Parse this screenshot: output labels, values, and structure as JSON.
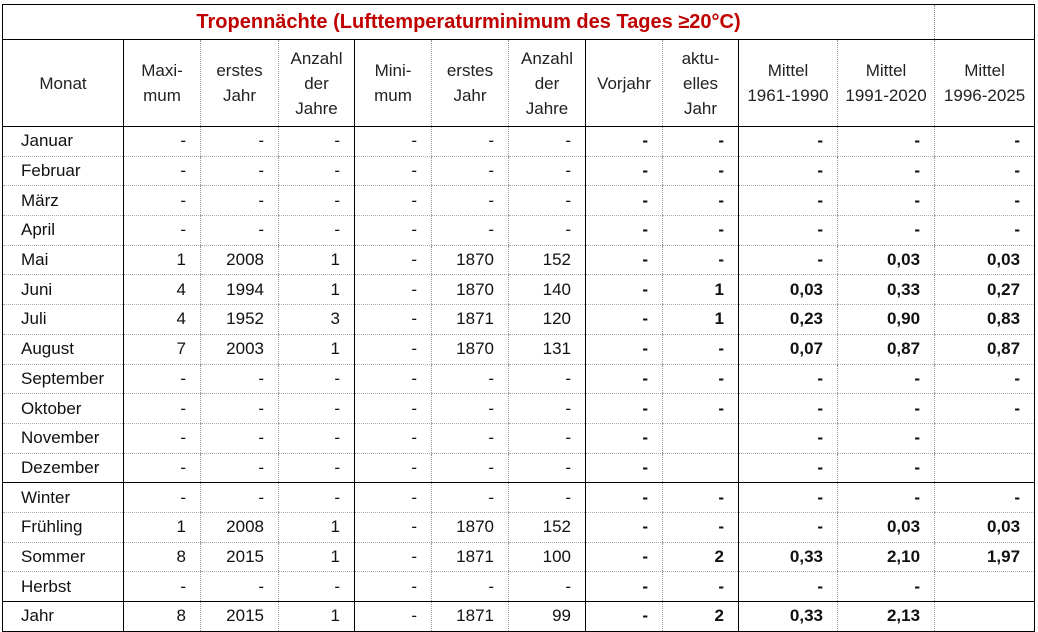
{
  "title": "Tropennächte (Lufttemperaturminimum des Tages  ≥20°C)",
  "headers": {
    "monat": "Monat",
    "maximum": [
      "Maxi-",
      "mum"
    ],
    "erstes_jahr_max": [
      "erstes",
      "Jahr"
    ],
    "anzahl_jahre_max": [
      "Anzahl",
      "der",
      "Jahre"
    ],
    "minimum": [
      "Mini-",
      "mum"
    ],
    "erstes_jahr_min": [
      "erstes",
      "Jahr"
    ],
    "anzahl_jahre_min": [
      "Anzahl",
      "der",
      "Jahre"
    ],
    "vorjahr": "Vorjahr",
    "aktuelles_jahr": [
      "aktu-",
      "elles",
      "Jahr"
    ],
    "mittel_1961": [
      "Mittel",
      "1961-1990"
    ],
    "mittel_1991": [
      "Mittel",
      "1991-2020"
    ],
    "mittel_1996": [
      "Mittel",
      "1996-2025"
    ]
  },
  "rows": [
    {
      "monat": "Januar",
      "max": "-",
      "erstes_max": "-",
      "anzahl_max": "-",
      "min": "-",
      "erstes_min": "-",
      "anzahl_min": "-",
      "vorjahr": "-",
      "aktuell": "-",
      "m1961": "-",
      "m1991": "-",
      "m1996": "-"
    },
    {
      "monat": "Februar",
      "max": "-",
      "erstes_max": "-",
      "anzahl_max": "-",
      "min": "-",
      "erstes_min": "-",
      "anzahl_min": "-",
      "vorjahr": "-",
      "aktuell": "-",
      "m1961": "-",
      "m1991": "-",
      "m1996": "-"
    },
    {
      "monat": "März",
      "max": "-",
      "erstes_max": "-",
      "anzahl_max": "-",
      "min": "-",
      "erstes_min": "-",
      "anzahl_min": "-",
      "vorjahr": "-",
      "aktuell": "-",
      "m1961": "-",
      "m1991": "-",
      "m1996": "-"
    },
    {
      "monat": "April",
      "max": "-",
      "erstes_max": "-",
      "anzahl_max": "-",
      "min": "-",
      "erstes_min": "-",
      "anzahl_min": "-",
      "vorjahr": "-",
      "aktuell": "-",
      "m1961": "-",
      "m1991": "-",
      "m1996": "-"
    },
    {
      "monat": "Mai",
      "max": "1",
      "erstes_max": "2008",
      "anzahl_max": "1",
      "min": "-",
      "erstes_min": "1870",
      "anzahl_min": "152",
      "vorjahr": "-",
      "aktuell": "-",
      "m1961": "-",
      "m1991": "0,03",
      "m1996": "0,03"
    },
    {
      "monat": "Juni",
      "max": "4",
      "erstes_max": "1994",
      "anzahl_max": "1",
      "min": "-",
      "erstes_min": "1870",
      "anzahl_min": "140",
      "vorjahr": "-",
      "aktuell": "1",
      "m1961": "0,03",
      "m1991": "0,33",
      "m1996": "0,27"
    },
    {
      "monat": "Juli",
      "max": "4",
      "erstes_max": "1952",
      "anzahl_max": "3",
      "min": "-",
      "erstes_min": "1871",
      "anzahl_min": "120",
      "vorjahr": "-",
      "aktuell": "1",
      "m1961": "0,23",
      "m1991": "0,90",
      "m1996": "0,83"
    },
    {
      "monat": "August",
      "max": "7",
      "erstes_max": "2003",
      "anzahl_max": "1",
      "min": "-",
      "erstes_min": "1870",
      "anzahl_min": "131",
      "vorjahr": "-",
      "aktuell": "-",
      "m1961": "0,07",
      "m1991": "0,87",
      "m1996": "0,87"
    },
    {
      "monat": "September",
      "max": "-",
      "erstes_max": "-",
      "anzahl_max": "-",
      "min": "-",
      "erstes_min": "-",
      "anzahl_min": "-",
      "vorjahr": "-",
      "aktuell": "-",
      "m1961": "-",
      "m1991": "-",
      "m1996": "-"
    },
    {
      "monat": "Oktober",
      "max": "-",
      "erstes_max": "-",
      "anzahl_max": "-",
      "min": "-",
      "erstes_min": "-",
      "anzahl_min": "-",
      "vorjahr": "-",
      "aktuell": "-",
      "m1961": "-",
      "m1991": "-",
      "m1996": "-"
    },
    {
      "monat": "November",
      "max": "-",
      "erstes_max": "-",
      "anzahl_max": "-",
      "min": "-",
      "erstes_min": "-",
      "anzahl_min": "-",
      "vorjahr": "-",
      "aktuell": "",
      "m1961": "-",
      "m1991": "-",
      "m1996": ""
    },
    {
      "monat": "Dezember",
      "max": "-",
      "erstes_max": "-",
      "anzahl_max": "-",
      "min": "-",
      "erstes_min": "-",
      "anzahl_min": "-",
      "vorjahr": "-",
      "aktuell": "",
      "m1961": "-",
      "m1991": "-",
      "m1996": ""
    },
    {
      "monat": "Winter",
      "max": "-",
      "erstes_max": "-",
      "anzahl_max": "-",
      "min": "-",
      "erstes_min": "-",
      "anzahl_min": "-",
      "vorjahr": "-",
      "aktuell": "-",
      "m1961": "-",
      "m1991": "-",
      "m1996": "-"
    },
    {
      "monat": "Frühling",
      "max": "1",
      "erstes_max": "2008",
      "anzahl_max": "1",
      "min": "-",
      "erstes_min": "1870",
      "anzahl_min": "152",
      "vorjahr": "-",
      "aktuell": "-",
      "m1961": "-",
      "m1991": "0,03",
      "m1996": "0,03"
    },
    {
      "monat": "Sommer",
      "max": "8",
      "erstes_max": "2015",
      "anzahl_max": "1",
      "min": "-",
      "erstes_min": "1871",
      "anzahl_min": "100",
      "vorjahr": "-",
      "aktuell": "2",
      "m1961": "0,33",
      "m1991": "2,10",
      "m1996": "1,97"
    },
    {
      "monat": "Herbst",
      "max": "-",
      "erstes_max": "-",
      "anzahl_max": "-",
      "min": "-",
      "erstes_min": "-",
      "anzahl_min": "-",
      "vorjahr": "-",
      "aktuell": "-",
      "m1961": "-",
      "m1991": "-",
      "m1996": ""
    },
    {
      "monat": "Jahr",
      "max": "8",
      "erstes_max": "2015",
      "anzahl_max": "1",
      "min": "-",
      "erstes_min": "1871",
      "anzahl_min": "99",
      "vorjahr": "-",
      "aktuell": "2",
      "m1961": "0,33",
      "m1991": "2,13",
      "m1996": ""
    }
  ]
}
